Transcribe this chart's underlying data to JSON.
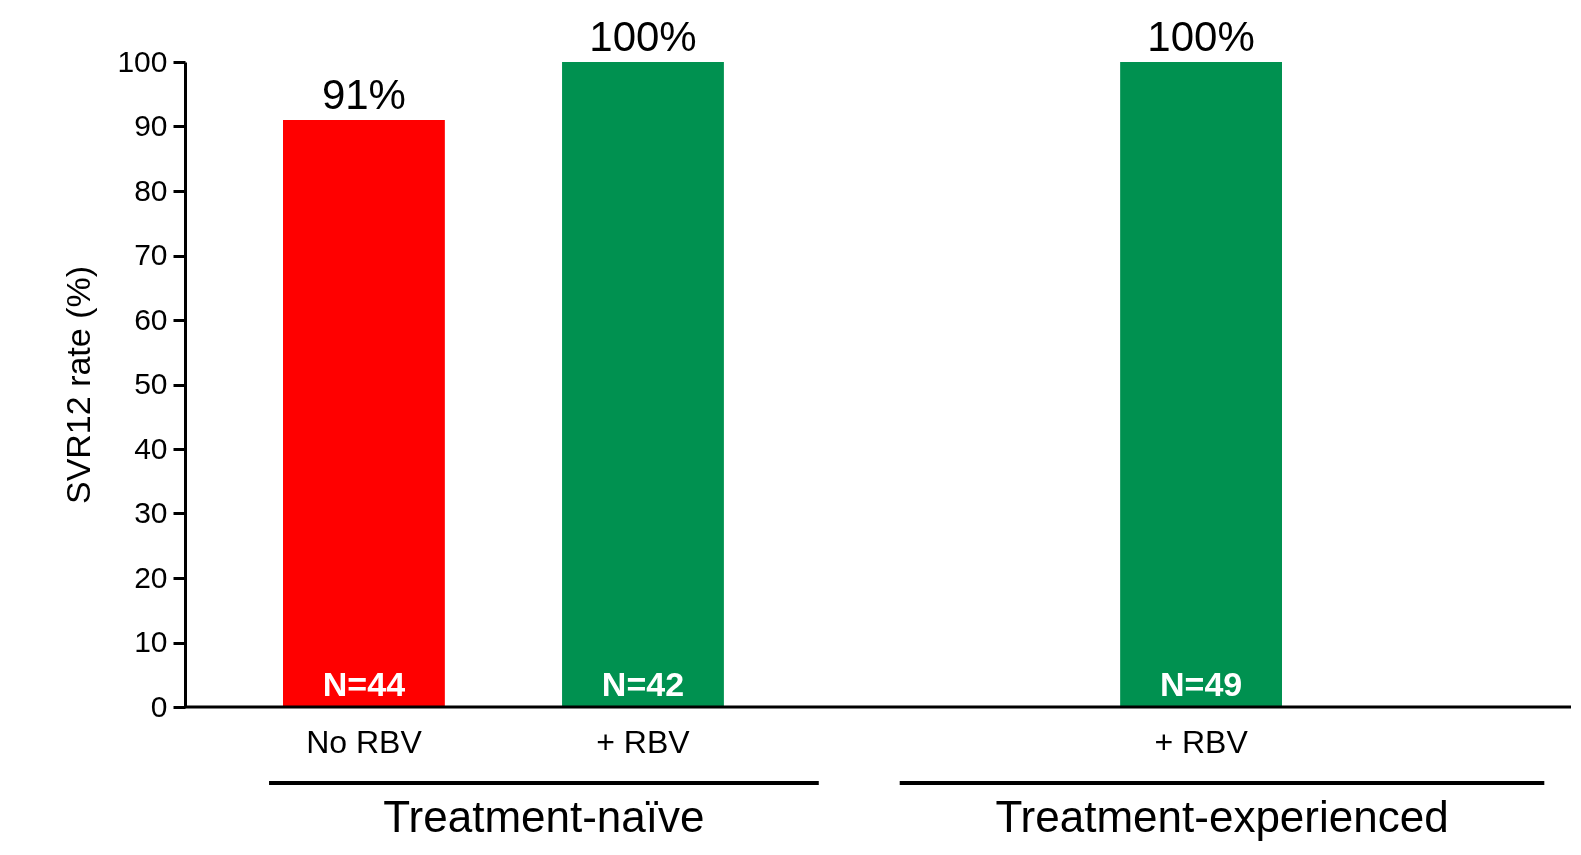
{
  "chart_data": {
    "type": "bar",
    "categories": [
      "No RBV",
      "+ RBV",
      null,
      "+ RBV"
    ],
    "values": [
      91,
      100,
      null,
      100
    ],
    "colors": [
      "#ff0000",
      "#009150",
      null,
      "#009150"
    ],
    "value_labels": [
      "91%",
      "100%",
      null,
      "100%"
    ],
    "ylabel": "SVR12 rate (%)",
    "ylim": [
      0,
      100
    ],
    "yticks": [
      0,
      10,
      20,
      30,
      40,
      50,
      60,
      70,
      80,
      90,
      100
    ],
    "annotations": [
      "N=44",
      "N=42",
      "N=49",
      "Treatment-naïve",
      "Treatment-experienced"
    ],
    "grid": false
  }
}
